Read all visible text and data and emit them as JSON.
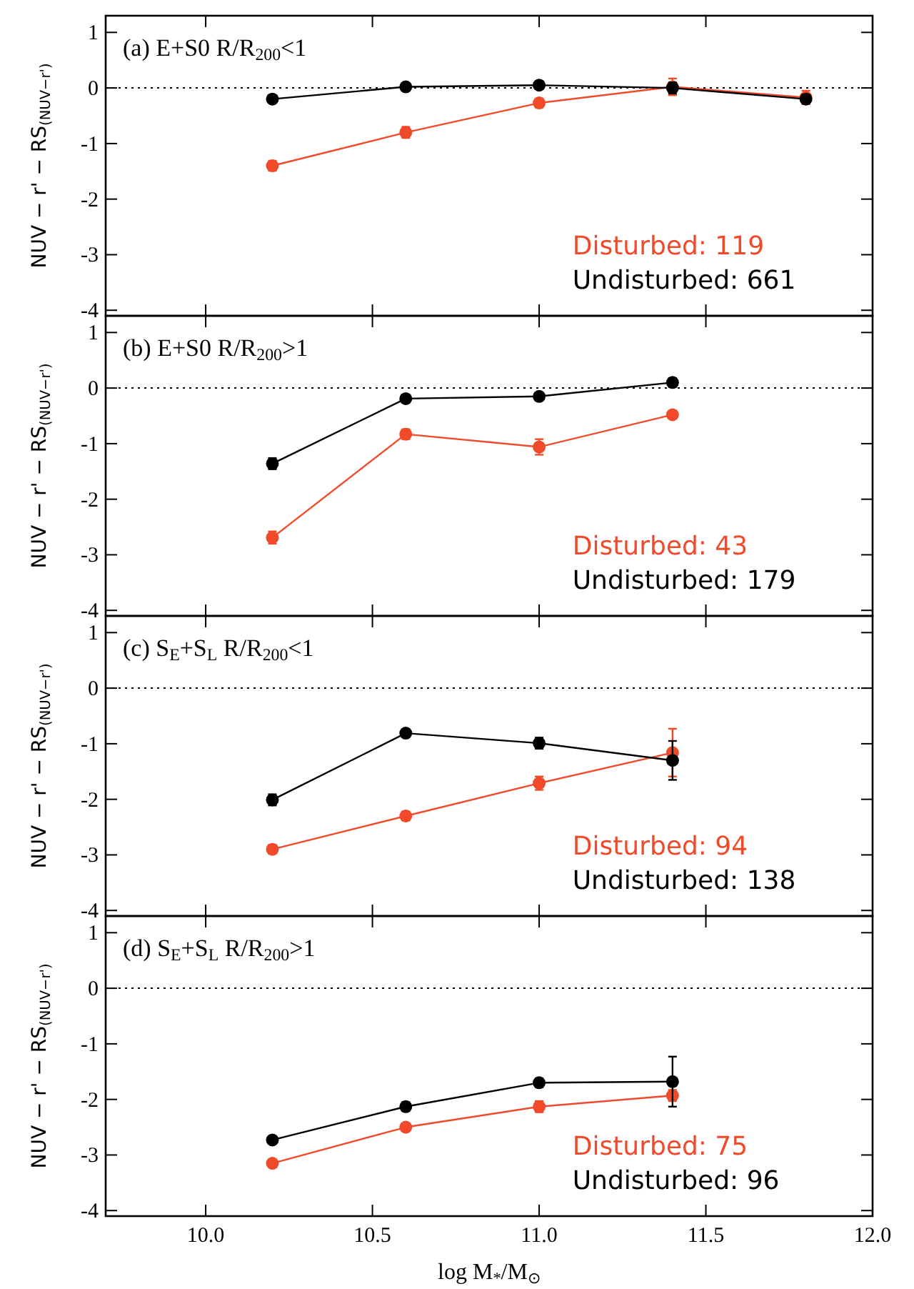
{
  "chart_data": [
    {
      "type": "line",
      "title": "(a) E+S0 R/R$_{200}$<1",
      "ylabel": "NUV − r' − RS$_{(NUV−r')}$",
      "x": [
        10.2,
        10.6,
        11.0,
        11.4,
        11.8
      ],
      "xlim": [
        9.7,
        12.0
      ],
      "xticks": [
        10.0,
        10.5,
        11.0,
        11.5,
        12.0
      ],
      "ylim": [
        -4.1,
        1.3
      ],
      "yticks": [
        -4,
        -3,
        -2,
        -1,
        0,
        1
      ],
      "tick_labels": "y",
      "marker": "circle",
      "legend": "bottom right",
      "ref_lines": [
        {
          "axis": "y",
          "value": 0,
          "line_style": "dotted",
          "color": "#000000"
        }
      ],
      "series": [
        {
          "name": "Disturbed: 119",
          "color": "#f04a2a",
          "values": [
            -1.4,
            -0.8,
            -0.27,
            0.02,
            -0.17
          ],
          "errors": [
            0.09,
            0.1,
            0.08,
            0.15,
            0.12
          ]
        },
        {
          "name": "Undisturbed: 661",
          "color": "#000000",
          "values": [
            -0.2,
            0.02,
            0.05,
            0.0,
            -0.2
          ],
          "errors": [
            0.05,
            0.04,
            0.04,
            0.1,
            0.08
          ]
        }
      ]
    },
    {
      "type": "line",
      "title": "(b) E+S0 R/R$_{200}$>1",
      "ylabel": "NUV − r' − RS$_{(NUV−r')}$",
      "x": [
        10.2,
        10.6,
        11.0,
        11.4
      ],
      "xlim": [
        9.7,
        12.0
      ],
      "xticks": [
        10.0,
        10.5,
        11.0,
        11.5,
        12.0
      ],
      "ylim": [
        -4.1,
        1.3
      ],
      "yticks": [
        -4,
        -3,
        -2,
        -1,
        0,
        1
      ],
      "tick_labels": "y",
      "marker": "circle",
      "legend": "bottom right",
      "ref_lines": [
        {
          "axis": "y",
          "value": 0,
          "line_style": "dotted",
          "color": "#000000"
        }
      ],
      "series": [
        {
          "name": "Disturbed: 43",
          "color": "#f04a2a",
          "values": [
            -2.69,
            -0.83,
            -1.06,
            -0.48
          ],
          "errors": [
            0.11,
            0.09,
            0.14,
            0.06
          ]
        },
        {
          "name": "Undisturbed: 179",
          "color": "#000000",
          "values": [
            -1.36,
            -0.19,
            -0.15,
            0.1
          ],
          "errors": [
            0.1,
            0.06,
            0.05,
            0.08
          ]
        }
      ]
    },
    {
      "type": "line",
      "title": "(c) S$_{E}$+S$_{L}$ R/R$_{200}$<1",
      "ylabel": "NUV − r' − RS$_{(NUV−r')}$",
      "x": [
        10.2,
        10.6,
        11.0,
        11.4
      ],
      "xlim": [
        9.7,
        12.0
      ],
      "xticks": [
        10.0,
        10.5,
        11.0,
        11.5,
        12.0
      ],
      "ylim": [
        -4.1,
        1.3
      ],
      "yticks": [
        -4,
        -3,
        -2,
        -1,
        0,
        1
      ],
      "tick_labels": "y",
      "marker": "circle",
      "legend": "bottom right",
      "ref_lines": [
        {
          "axis": "y",
          "value": 0,
          "line_style": "dotted",
          "color": "#000000"
        }
      ],
      "series": [
        {
          "name": "Disturbed: 94",
          "color": "#f04a2a",
          "values": [
            -2.9,
            -2.3,
            -1.71,
            -1.16
          ],
          "errors": [
            0.08,
            0.08,
            0.12,
            0.43
          ]
        },
        {
          "name": "Undisturbed: 138",
          "color": "#000000",
          "values": [
            -2.01,
            -0.81,
            -0.99,
            -1.3
          ],
          "errors": [
            0.1,
            0.07,
            0.1,
            0.35
          ]
        }
      ]
    },
    {
      "type": "line",
      "title": "(d) S$_{E}$+S$_{L}$ R/R$_{200}$>1",
      "ylabel": "NUV − r' − RS$_{(NUV−r')}$",
      "xlabel": "log M$_{*}$/M$_{⊙}$",
      "x": [
        10.2,
        10.6,
        11.0,
        11.4
      ],
      "xlim": [
        9.7,
        12.0
      ],
      "xticks": [
        {
          "value": 10,
          "label": "10.0"
        },
        10.5,
        {
          "value": 11,
          "label": "11.0"
        },
        11.5,
        {
          "value": 12,
          "label": "12.0"
        }
      ],
      "ylim": [
        -4.1,
        1.3
      ],
      "yticks": [
        -4,
        -3,
        -2,
        -1,
        0,
        1
      ],
      "marker": "circle",
      "legend": "bottom right",
      "ref_lines": [
        {
          "axis": "y",
          "value": 0,
          "line_style": "dotted",
          "color": "#000000"
        }
      ],
      "series": [
        {
          "name": "Disturbed: 75",
          "color": "#f04a2a",
          "values": [
            -3.15,
            -2.5,
            -2.13,
            -1.93
          ],
          "errors": [
            0.05,
            0.06,
            0.1,
            0.1
          ]
        },
        {
          "name": "Undisturbed: 96",
          "color": "#000000",
          "values": [
            -2.73,
            -2.13,
            -1.7,
            -1.68
          ],
          "errors": [
            0.05,
            0.08,
            0.08,
            0.45
          ]
        }
      ]
    }
  ]
}
